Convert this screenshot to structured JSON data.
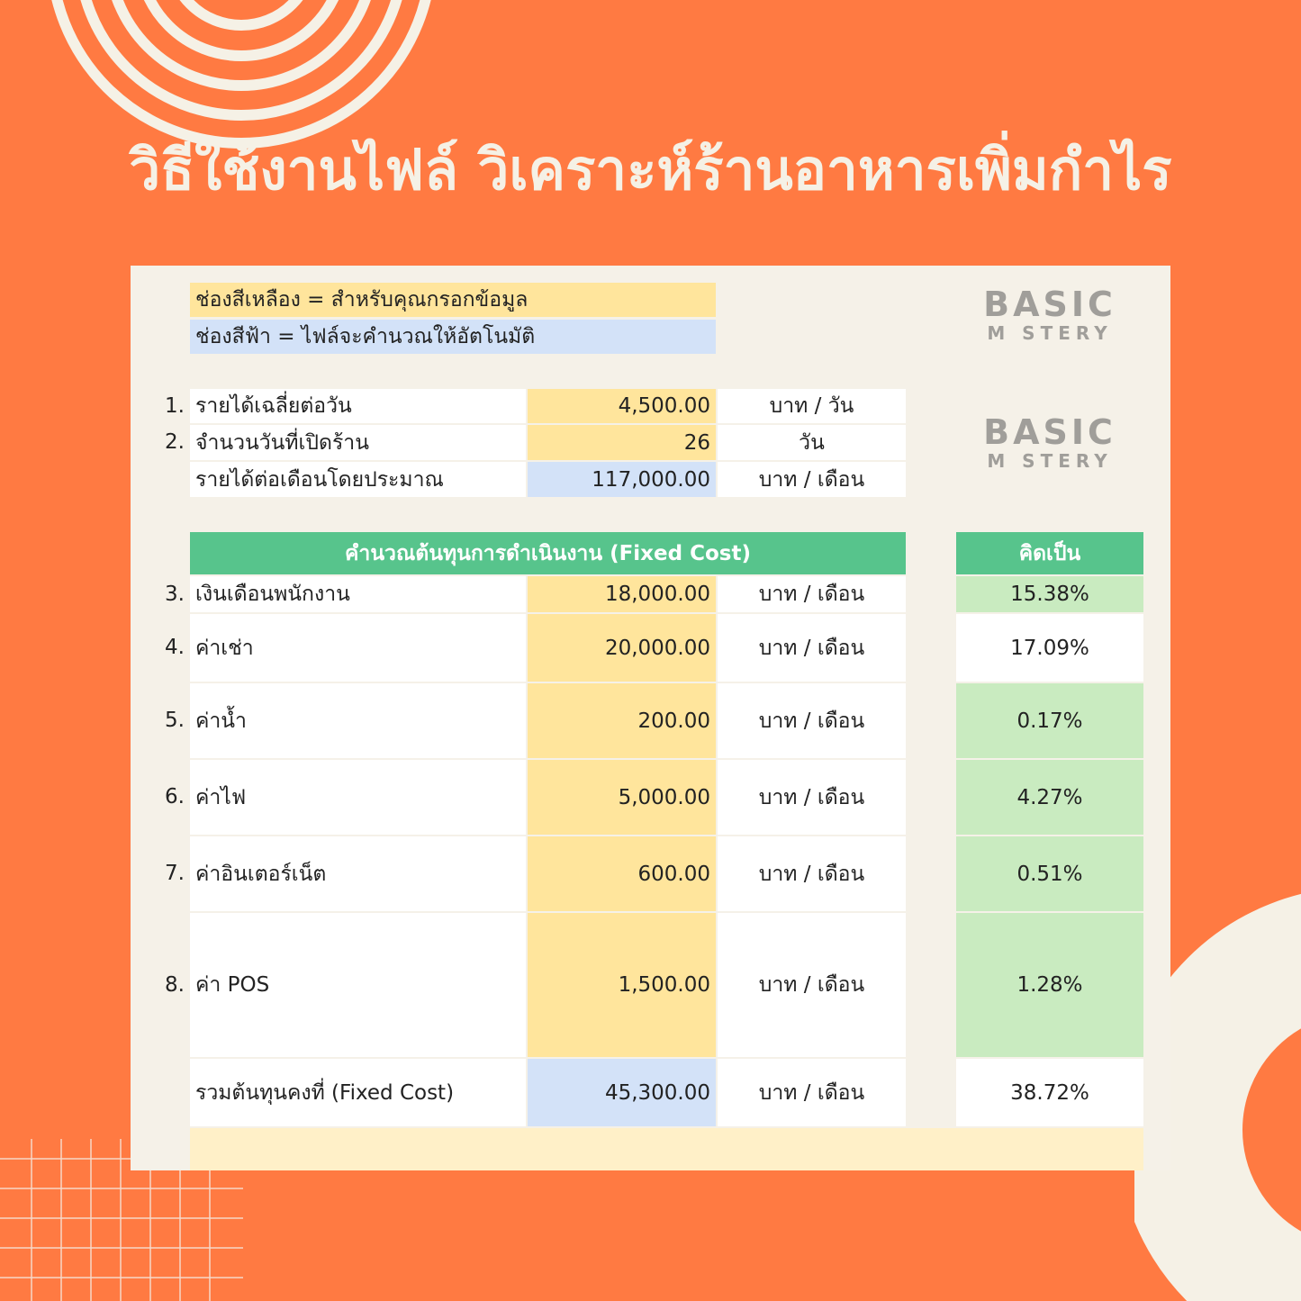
{
  "title": "วิธีใช้งานไฟล์ วิเคราะห์ร้านอาหารเพิ่มกำไร",
  "legend": {
    "yellow": "ช่องสีเหลือง = สำหรับคุณกรอกข้อมูล",
    "blue": "ช่องสีฟ้า = ไฟล์จะคำนวณให้อัตโนมัติ"
  },
  "revenue": [
    {
      "num": "1.",
      "label": "รายได้เฉลี่ยต่อวัน",
      "value": "4,500.00",
      "unit": "บาท / วัน"
    },
    {
      "num": "2.",
      "label": "จำนวนวันที่เปิดร้าน",
      "value": "26",
      "unit": "วัน"
    },
    {
      "num": "",
      "label": "รายได้ต่อเดือนโดยประมาณ",
      "value": "117,000.00",
      "unit": "บาท / เดือน"
    }
  ],
  "cost_header": "คำนวณต้นทุนการดำเนินงาน (Fixed Cost)",
  "pct_header": "คิดเป็น",
  "costs": [
    {
      "num": "3.",
      "label": "เงินเดือนพนักงาน",
      "value": "18,000.00",
      "unit": "บาท / เดือน",
      "pct": "15.38%"
    },
    {
      "num": "4.",
      "label": "ค่าเช่า",
      "value": "20,000.00",
      "unit": "บาท / เดือน",
      "pct": "17.09%"
    },
    {
      "num": "5.",
      "label": "ค่าน้ำ",
      "value": "200.00",
      "unit": "บาท / เดือน",
      "pct": "0.17%"
    },
    {
      "num": "6.",
      "label": "ค่าไฟ",
      "value": "5,000.00",
      "unit": "บาท / เดือน",
      "pct": "4.27%"
    },
    {
      "num": "7.",
      "label": "ค่าอินเตอร์เน็ต",
      "value": "600.00",
      "unit": "บาท / เดือน",
      "pct": "0.51%"
    },
    {
      "num": "8.",
      "label": "ค่า POS",
      "value": "1,500.00",
      "unit": "บาท / เดือน",
      "pct": "1.28%"
    }
  ],
  "total": {
    "label": "รวมต้นทุนคงที่ (Fixed Cost)",
    "value": "45,300.00",
    "unit": "บาท / เดือน",
    "pct": "38.72%"
  },
  "watermark": {
    "top": "BASIC",
    "bottom": "M  STERY"
  },
  "colors": {
    "background": "#ff7a42",
    "input": "#ffe59c",
    "auto": "#d3e2f8",
    "header": "#57c48c",
    "percent": "#c9ebc0"
  }
}
